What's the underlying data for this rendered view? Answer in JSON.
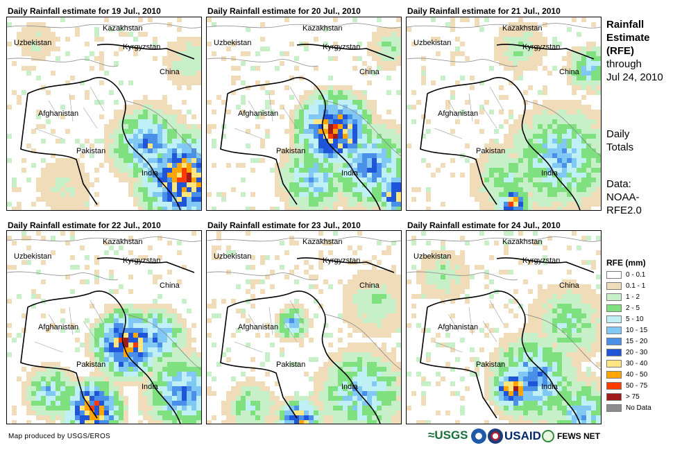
{
  "panels": [
    {
      "title": "Daily Rainfall estimate for 19 Jul., 2010"
    },
    {
      "title": "Daily Rainfall estimate for 20 Jul., 2010"
    },
    {
      "title": "Daily Rainfall estimate for 21 Jul., 2010"
    },
    {
      "title": "Daily Rainfall estimate for 22 Jul., 2010"
    },
    {
      "title": "Daily Rainfall estimate for 23 Jul., 2010"
    },
    {
      "title": "Daily Rainfall estimate for 24 Jul., 2010"
    }
  ],
  "map_labels": {
    "kazakhstan": "Kazakhstan",
    "uzbekistan": "Uzbekistan",
    "kyrgyzstan": "Kyrgyzstan",
    "china": "China",
    "afghanistan": "Afghanistan",
    "pakistan": "Pakistan",
    "india": "India"
  },
  "side": {
    "line1": "Rainfall",
    "line2": "Estimate",
    "line3": "(RFE)",
    "line4": "through",
    "line5": "Jul 24, 2010",
    "totals1": "Daily",
    "totals2": "Totals",
    "data1": "Data:",
    "data2": "NOAA-",
    "data3": "RFE2.0"
  },
  "legend": {
    "title": "RFE (mm)",
    "items": [
      {
        "label": "0 - 0.1",
        "color": "#ffffff"
      },
      {
        "label": "0.1 - 1",
        "color": "#f0dcb8"
      },
      {
        "label": "1 - 2",
        "color": "#c8f0c8"
      },
      {
        "label": "2 - 5",
        "color": "#7ee07e"
      },
      {
        "label": "5 - 10",
        "color": "#bff0f5"
      },
      {
        "label": "10 - 15",
        "color": "#82c8f5"
      },
      {
        "label": "15 - 20",
        "color": "#4a8fe8"
      },
      {
        "label": "20 - 30",
        "color": "#1f55d8"
      },
      {
        "label": "30 - 40",
        "color": "#ffe680"
      },
      {
        "label": "40 - 50",
        "color": "#ffa500"
      },
      {
        "label": "50 - 75",
        "color": "#ff3c00"
      },
      {
        "label": "> 75",
        "color": "#a01c1c"
      },
      {
        "label": "No Data",
        "color": "#8c8c8c"
      }
    ]
  },
  "footer": {
    "credit": "Map produced by USGS/EROS"
  },
  "logos": {
    "usgs": "≈USGS",
    "usaid": "USAID",
    "fews": "FEWS NET"
  }
}
